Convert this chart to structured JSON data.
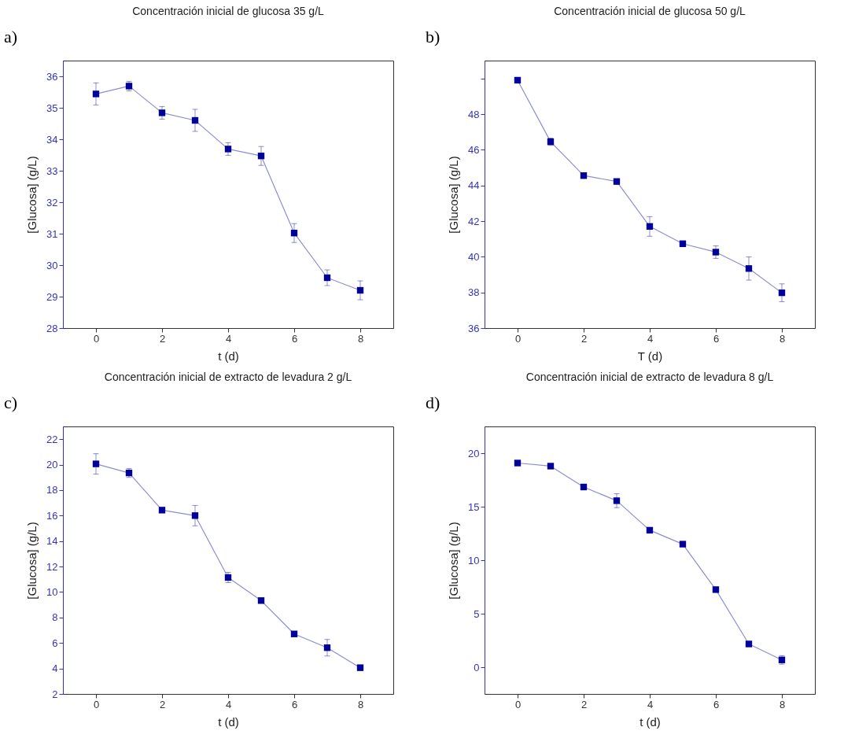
{
  "chart_data": [
    {
      "type": "line",
      "title": "Concentración inicial de glucosa 35 g/L",
      "xlabel": "t (d)",
      "ylabel": "[Glucosa] (g/L)",
      "annotations": [
        "a)"
      ],
      "x": [
        0,
        1,
        2,
        3,
        4,
        5,
        6,
        7,
        8
      ],
      "xlim": [
        -1,
        9
      ],
      "xticks": [
        0,
        2,
        4,
        6,
        8
      ],
      "ylim": [
        28,
        36.5
      ],
      "yticks": [
        28,
        29,
        30,
        31,
        32,
        33,
        34,
        35,
        36
      ],
      "marker": "square",
      "grid": false,
      "series": [
        {
          "color": "#000099",
          "values": [
            35.44,
            35.69,
            34.84,
            34.6,
            33.69,
            33.47,
            31.02,
            29.6,
            29.2
          ],
          "errors": [
            0.35,
            0.15,
            0.2,
            0.35,
            0.2,
            0.3,
            0.3,
            0.25,
            0.3
          ]
        }
      ]
    },
    {
      "type": "line",
      "title": "Concentración inicial de glucosa 50 g/L",
      "xlabel": "T (d)",
      "ylabel": "[Glucosa] (g/L)",
      "annotations": [
        "b)"
      ],
      "x": [
        0,
        1,
        2,
        3,
        4,
        5,
        6,
        7,
        8
      ],
      "xlim": [
        -1,
        9
      ],
      "xticks": [
        0,
        2,
        4,
        6,
        8
      ],
      "ylim": [
        36,
        51
      ],
      "yticks": [
        36,
        38,
        40,
        42,
        44,
        46,
        48,
        {
          "value": 50,
          "label": null
        }
      ],
      "marker": "square",
      "grid": false,
      "series": [
        {
          "color": "#000099",
          "values": [
            49.9,
            46.45,
            44.55,
            44.22,
            41.7,
            40.73,
            40.26,
            39.34,
            37.98
          ],
          "errors": [
            0.1,
            0.2,
            0.1,
            0.1,
            0.55,
            0.15,
            0.35,
            0.65,
            0.5
          ]
        }
      ]
    },
    {
      "type": "line",
      "title": "Concentración inicial de extracto de levadura 2 g/L",
      "xlabel": "t (d)",
      "ylabel": "[Glucosa] (g/L)",
      "annotations": [
        "c)"
      ],
      "x": [
        0,
        1,
        2,
        3,
        4,
        5,
        6,
        7,
        8
      ],
      "xlim": [
        -1,
        9
      ],
      "xticks": [
        0,
        2,
        4,
        6,
        8
      ],
      "ylim": [
        2,
        23
      ],
      "yticks": [
        2,
        4,
        6,
        8,
        10,
        12,
        14,
        16,
        18,
        20,
        22
      ],
      "marker": "square",
      "grid": false,
      "series": [
        {
          "color": "#000099",
          "values": [
            20.06,
            19.35,
            16.43,
            16.0,
            11.14,
            9.33,
            6.71,
            5.63,
            4.06
          ],
          "errors": [
            0.8,
            0.35,
            0.1,
            0.8,
            0.4,
            0.15,
            0.1,
            0.65,
            0.2
          ]
        }
      ]
    },
    {
      "type": "line",
      "title": "Concentración inicial de extracto de levadura 8 g/L",
      "xlabel": "t (d)",
      "ylabel": "[Glucosa] (g/L)",
      "annotations": [
        "d)"
      ],
      "x": [
        0,
        1,
        2,
        3,
        4,
        5,
        6,
        7,
        8
      ],
      "xlim": [
        -1,
        9
      ],
      "xticks": [
        0,
        2,
        4,
        6,
        8
      ],
      "ylim": [
        -2.5,
        22.5
      ],
      "yticks": [
        0,
        5,
        10,
        15,
        20
      ],
      "marker": "square",
      "grid": false,
      "series": [
        {
          "color": "#000099",
          "values": [
            19.08,
            18.79,
            16.84,
            15.56,
            12.8,
            11.5,
            7.25,
            2.17,
            0.68
          ],
          "errors": [
            0.2,
            0.2,
            0.2,
            0.65,
            0.2,
            0.2,
            0.2,
            0.2,
            0.4
          ]
        }
      ]
    }
  ]
}
